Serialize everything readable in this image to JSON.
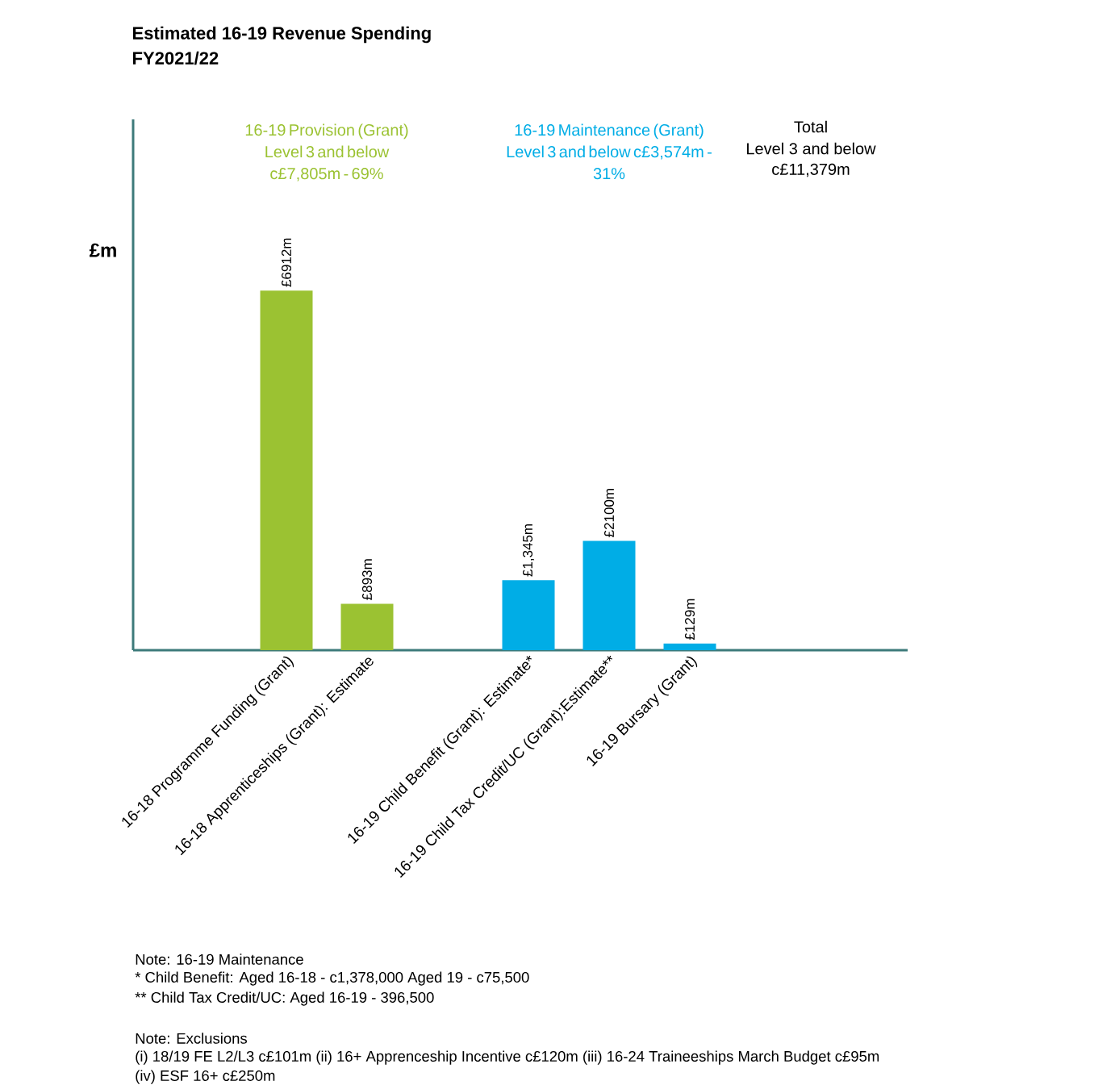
{
  "chart_data": {
    "type": "bar",
    "title": "Estimated 16-19 Revenue Spending",
    "subtitle": "FY2021/22",
    "ylabel": "£m",
    "categories": [
      "16-18 Programme Funding (Grant)",
      "16-18 Apprenticeships (Grant): Estimate",
      null,
      "16-19 Child Benefit (Grant): Estimate*",
      "16-19 Child Tax Credit/UC (Grant):Estimate**",
      "16-19 Bursary (Grant)"
    ],
    "series": [
      {
        "name": "16-19 Provision (Grant) Level 3 and below c£7,805m - 69%",
        "color": "#9bc232",
        "values": [
          6912,
          893,
          null,
          null,
          null,
          null
        ],
        "value_labels": [
          "£6912m",
          "£893m",
          null,
          null,
          null,
          null
        ]
      },
      {
        "name": "16-19 Maintenance (Grant) Level 3 and below c£3,574m - 31%",
        "color": "#00ade6",
        "values": [
          null,
          null,
          null,
          1345,
          2100,
          129
        ],
        "value_labels": [
          null,
          null,
          null,
          "£1,345m",
          "£2100m",
          "£129m"
        ]
      }
    ],
    "tick_labels": "x",
    "annotations": [
      "Total",
      "Level 3 and below",
      "c£11,379m",
      "Note: 16-19 Maintenance",
      "* Child Benefit: Aged 16-18 - c1,378,000  Aged 19 - c75,500",
      "** Child Tax Credit/UC: Aged 16-19 - 396,500",
      "Note: Exclusions",
      "(i) 18/19 FE L2/L3 c£101m (ii) 16+ Apprenceship Incentive c£120m (iii) 16-24 Traineeships March Budget c£95m",
      "(iv) ESF 16+ c£250m"
    ]
  }
}
